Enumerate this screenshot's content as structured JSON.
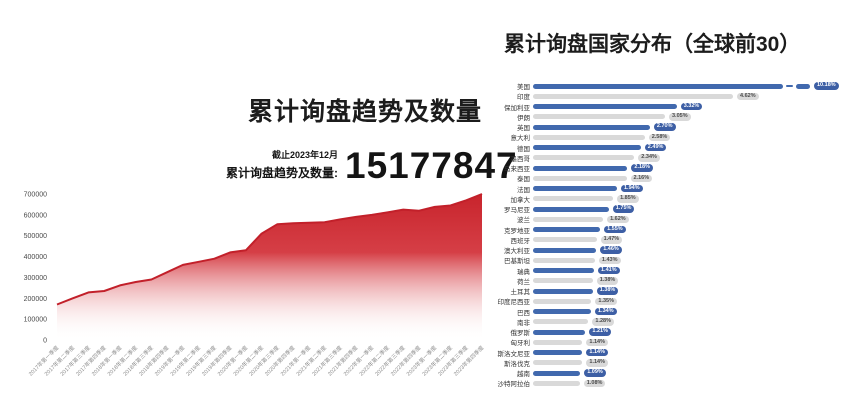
{
  "left_chart": {
    "note": "截止2023年12月",
    "total_label": "累计询盘趋势及数量:",
    "total_value": "15177847"
  },
  "chart_data": [
    {
      "type": "area",
      "title": "累计询盘趋势及数量",
      "xlabel": "",
      "ylabel": "",
      "ylim": [
        0,
        700000
      ],
      "yticks": [
        0,
        100000,
        200000,
        300000,
        400000,
        500000,
        600000,
        700000
      ],
      "grid": false,
      "x": [
        "2017年第一季度",
        "2017年第二季度",
        "2017年第三季度",
        "2017年第四季度",
        "2018年第一季度",
        "2018年第二季度",
        "2018年第三季度",
        "2018年第四季度",
        "2019年第一季度",
        "2019年第二季度",
        "2019年第三季度",
        "2019年第四季度",
        "2020年第一季度",
        "2020年第二季度",
        "2020年第三季度",
        "2020年第四季度",
        "2021年第一季度",
        "2021年第二季度",
        "2021年第三季度",
        "2021年第四季度",
        "2022年第一季度",
        "2022年第二季度",
        "2022年第三季度",
        "2022年第四季度",
        "2023年第一季度",
        "2023年第二季度",
        "2023年第三季度",
        "2023年第四季度"
      ],
      "values": [
        170000,
        200000,
        228000,
        235000,
        262000,
        278000,
        290000,
        325000,
        360000,
        375000,
        390000,
        420000,
        430000,
        510000,
        555000,
        560000,
        562000,
        565000,
        578000,
        590000,
        600000,
        612000,
        625000,
        620000,
        638000,
        645000,
        670000,
        700000
      ],
      "annotation": {
        "note": "截止2023年12月",
        "label": "累计询盘趋势及数量:",
        "value": "15177847"
      },
      "colors": {
        "line": "#c2202a",
        "fill_top": "#c8242c",
        "fill_bottom": "#ffffff",
        "tick_text": "#4a4a4a",
        "x_text": "#8f8f8f"
      }
    },
    {
      "type": "bar",
      "orientation": "horizontal",
      "title": "累计询盘国家分布（全球前30）",
      "axis_break_first_bar": true,
      "xmax_display": 4.62,
      "categories": [
        "美国",
        "印度",
        "保加利亚",
        "伊朗",
        "英国",
        "意大利",
        "德国",
        "墨西哥",
        "马来西亚",
        "泰国",
        "法国",
        "加拿大",
        "罗马尼亚",
        "波兰",
        "克罗地亚",
        "西班牙",
        "澳大利亚",
        "巴基斯坦",
        "瑞典",
        "荷兰",
        "土耳其",
        "印度尼西亚",
        "巴西",
        "南非",
        "俄罗斯",
        "匈牙利",
        "斯洛文尼亚",
        "斯洛伐克",
        "越南",
        "沙特阿拉伯"
      ],
      "values": [
        10.18,
        4.62,
        3.32,
        3.05,
        2.7,
        2.58,
        2.49,
        2.34,
        2.18,
        2.16,
        1.94,
        1.85,
        1.75,
        1.62,
        1.55,
        1.47,
        1.46,
        1.43,
        1.41,
        1.38,
        1.38,
        1.35,
        1.34,
        1.28,
        1.21,
        1.14,
        1.14,
        1.14,
        1.09,
        1.08
      ],
      "value_labels": [
        "10.18%",
        "4.62%",
        "3.32%",
        "3.05%",
        "2.70%",
        "2.58%",
        "2.49%",
        "2.34%",
        "2.18%",
        "2.16%",
        "1.94%",
        "1.85%",
        "1.75%",
        "1.62%",
        "1.55%",
        "1.47%",
        "1.46%",
        "1.43%",
        "1.41%",
        "1.38%",
        "1.38%",
        "1.35%",
        "1.34%",
        "1.28%",
        "1.21%",
        "1.14%",
        "1.14%",
        "1.14%",
        "1.09%",
        "1.08%"
      ],
      "colors": {
        "odd_bar": "#4169ae",
        "even_bar": "#d9d9d9",
        "odd_pill_bg": "#3d5fa5",
        "odd_pill_text": "#ffffff",
        "even_pill_bg": "#d9d9d9",
        "even_pill_text": "#4a4a4a",
        "label_text": "#333333"
      }
    }
  ]
}
